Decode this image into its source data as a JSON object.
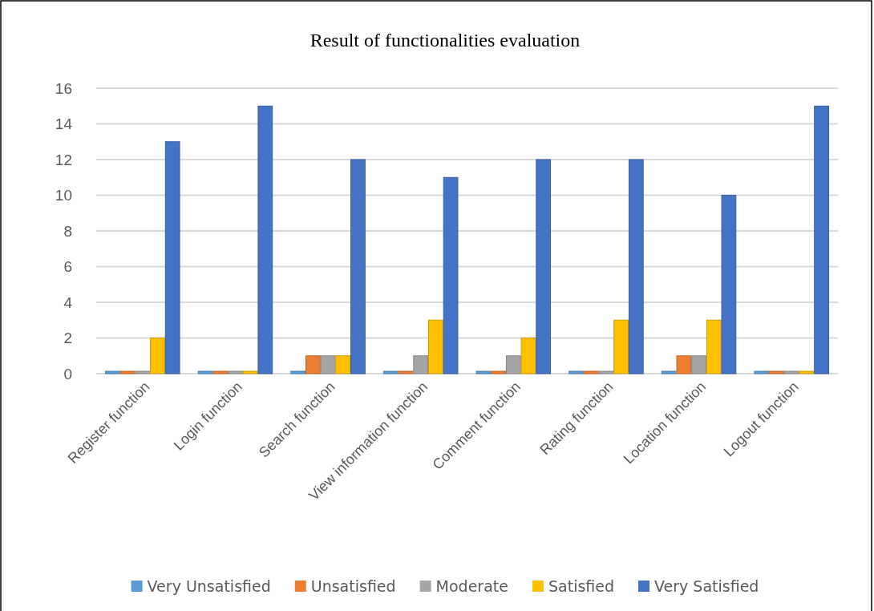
{
  "chart_data": {
    "type": "bar",
    "title": "Result of functionalities evaluation",
    "categories": [
      "Register function",
      "Login function",
      "Search function",
      "View information function",
      "Comment function",
      "Rating function",
      "Location function",
      "Logout function"
    ],
    "series": [
      {
        "name": "Very Unsatisfied",
        "color": "#5b9bd5",
        "values": [
          0,
          0,
          0,
          0,
          0,
          0,
          0,
          0
        ]
      },
      {
        "name": "Unsatisfied",
        "color": "#ed7d31",
        "values": [
          0,
          0,
          1,
          0,
          0,
          0,
          1,
          0
        ]
      },
      {
        "name": "Moderate",
        "color": "#a5a5a5",
        "values": [
          0,
          0,
          1,
          1,
          1,
          0,
          1,
          0
        ]
      },
      {
        "name": "Satisfied",
        "color": "#ffc000",
        "values": [
          2,
          0,
          1,
          3,
          2,
          3,
          3,
          0
        ]
      },
      {
        "name": "Very Satisfied",
        "color": "#4472c4",
        "values": [
          13,
          15,
          12,
          11,
          12,
          12,
          10,
          15
        ]
      }
    ],
    "ylim": [
      0,
      16
    ],
    "yticks": [
      0,
      2,
      4,
      6,
      8,
      10,
      12,
      14,
      16
    ],
    "grid": "y",
    "legend": "bottom"
  }
}
